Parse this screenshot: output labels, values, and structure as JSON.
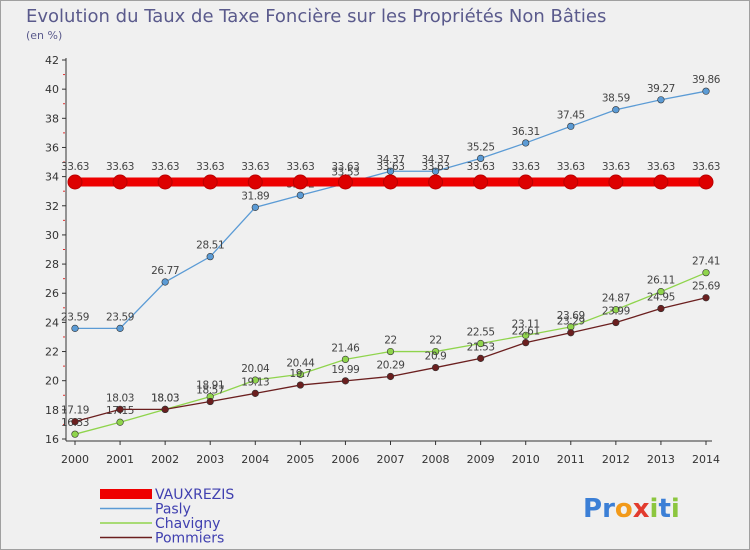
{
  "chart_data": {
    "type": "line",
    "title": "Evolution du Taux de Taxe Foncière sur les Propriétés Non Bâties",
    "subtitle": "(en %)",
    "x": [
      2000,
      2001,
      2002,
      2003,
      2004,
      2005,
      2006,
      2007,
      2008,
      2009,
      2010,
      2011,
      2012,
      2013,
      2014
    ],
    "ylim": [
      16,
      42
    ],
    "yticks": [
      16,
      18,
      20,
      22,
      24,
      26,
      28,
      30,
      32,
      34,
      36,
      38,
      40,
      42
    ],
    "grid": false,
    "legend_position": "bottom-left",
    "series": [
      {
        "name": "VAUXREZIS",
        "color": "#ee0000",
        "values": [
          33.63,
          33.63,
          33.63,
          33.63,
          33.63,
          33.63,
          33.63,
          33.63,
          33.63,
          33.63,
          33.63,
          33.63,
          33.63,
          33.63,
          33.63
        ],
        "labels": [
          "33.63",
          "33.63",
          "33.63",
          "33.63",
          "33.63",
          "33.63",
          "33.63",
          "33.63",
          "33.63",
          "33.63",
          "33.63",
          "33.63",
          "33.63",
          "33.63",
          "33.63"
        ]
      },
      {
        "name": "Pasly",
        "color": "#5b9bd5",
        "values": [
          23.59,
          23.59,
          26.77,
          28.51,
          31.89,
          32.72,
          33.53,
          34.37,
          34.37,
          35.25,
          36.31,
          37.45,
          38.59,
          39.27,
          39.86
        ],
        "labels": [
          "23.59",
          "23.59",
          "26.77",
          "28.51",
          "31.89",
          "32.72",
          "33.53",
          "34.37",
          "34.37",
          "35.25",
          "36.31",
          "37.45",
          "38.59",
          "39.27",
          "39.86"
        ]
      },
      {
        "name": "Chavigny",
        "color": "#8fd44c",
        "values": [
          16.33,
          17.15,
          18.03,
          18.91,
          20.04,
          20.44,
          21.46,
          22.0,
          22.0,
          22.55,
          23.11,
          23.69,
          24.87,
          26.11,
          27.41
        ],
        "labels": [
          "16.33",
          "17.15",
          "18.03",
          "18.91",
          "20.04",
          "20.44",
          "21.46",
          "22",
          "22",
          "22.55",
          "23.11",
          "23.69",
          "24.87",
          "26.11",
          "27.41"
        ]
      },
      {
        "name": "Pommiers",
        "color": "#6b1f1f",
        "values": [
          17.19,
          18.03,
          18.03,
          18.57,
          19.13,
          19.7,
          19.99,
          20.29,
          20.9,
          21.53,
          22.61,
          23.29,
          23.99,
          24.95,
          25.69
        ],
        "labels": [
          "17.19",
          "18.03",
          "18.03",
          "18.57",
          "19.13",
          "19.7",
          "19.99",
          "20.29",
          "20.9",
          "21.53",
          "22.61",
          "23.29",
          "23.99",
          "24.95",
          "25.69"
        ]
      }
    ]
  },
  "logo": {
    "letters": [
      "P",
      "r",
      "o",
      "x",
      "i",
      "t",
      "i"
    ],
    "colors": [
      "#3b7fd6",
      "#3b7fd6",
      "#f29a1a",
      "#e23b2e",
      "#8cc63f",
      "#3b7fd6",
      "#8cc63f"
    ]
  }
}
